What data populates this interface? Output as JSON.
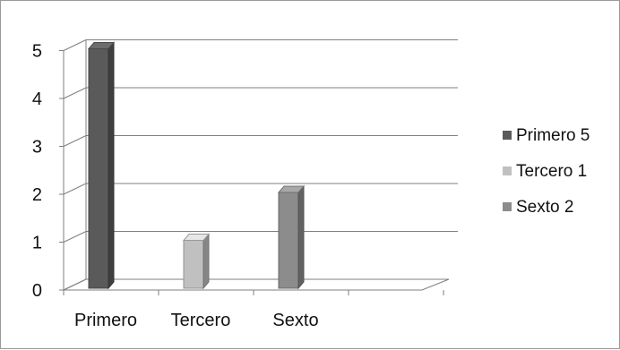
{
  "chart_data": {
    "type": "bar",
    "style": "3d-column",
    "categories": [
      "Primero",
      "Tercero",
      "Sexto"
    ],
    "series": [
      {
        "name": "Primero",
        "category": "Primero",
        "value": 5,
        "color": "#5a5a5a"
      },
      {
        "name": "Tercero",
        "category": "Tercero",
        "value": 1,
        "color": "#c0c0c0"
      },
      {
        "name": "Sexto",
        "category": "Sexto",
        "value": 2,
        "color": "#8c8c8c"
      }
    ],
    "legend": {
      "placement": "right",
      "entries": [
        "Primero 5",
        "Tercero 1",
        "Sexto 2"
      ]
    },
    "title": "",
    "xlabel": "",
    "ylabel": "",
    "ylim": [
      0,
      5
    ],
    "yticks": [
      "0",
      "1",
      "2",
      "3",
      "4",
      "5"
    ],
    "grid": true
  }
}
